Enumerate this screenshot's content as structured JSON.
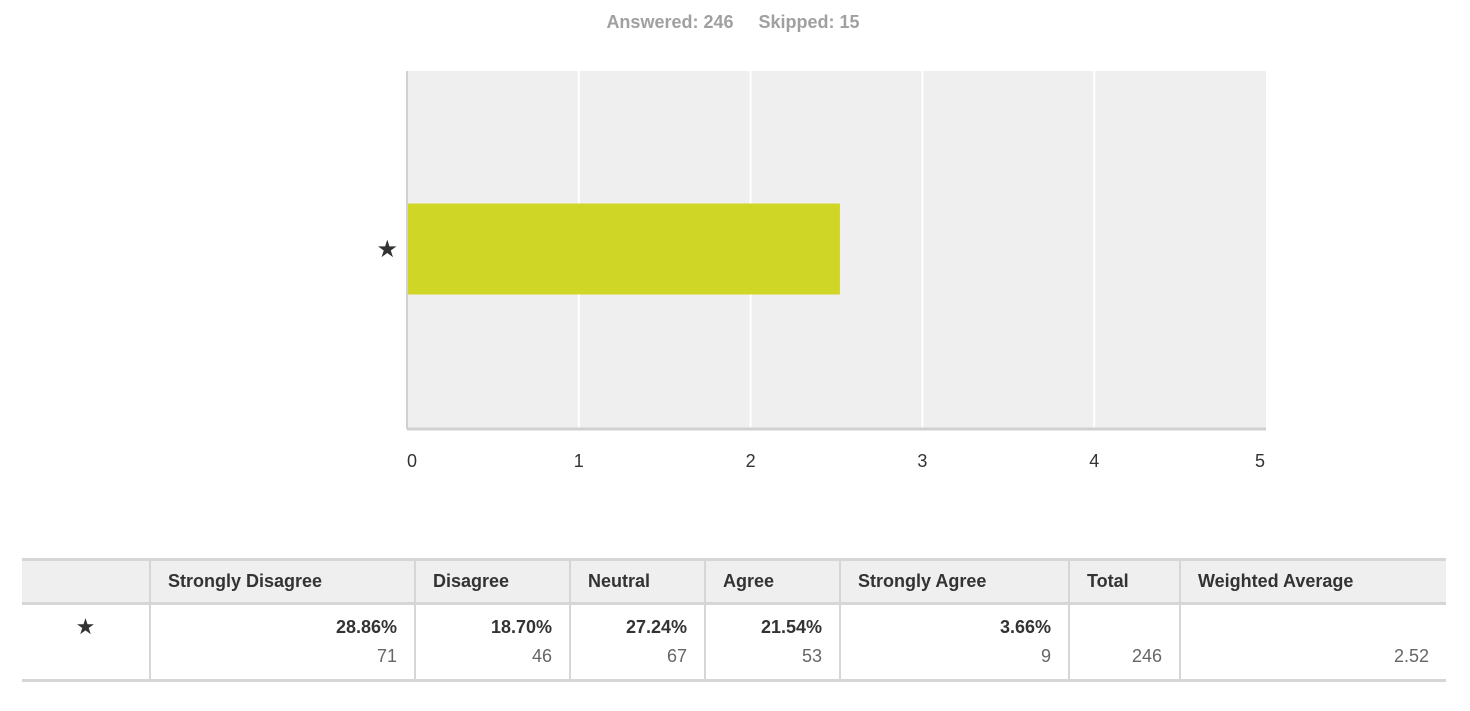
{
  "summary": {
    "answered": "Answered: 246",
    "skipped": "Skipped: 15"
  },
  "colors": {
    "bar": "#cfd626",
    "plot_bg": "#efefef",
    "grid": "#ffffff",
    "axis": "#d0d0d0"
  },
  "chart_data": {
    "type": "bar",
    "orientation": "horizontal",
    "categories": [
      "★"
    ],
    "values": [
      2.52
    ],
    "xlim": [
      0,
      5
    ],
    "xticks": [
      "0",
      "1",
      "2",
      "3",
      "4",
      "5"
    ],
    "grid": true,
    "title": "",
    "xlabel": "",
    "ylabel": ""
  },
  "table": {
    "headers": [
      "",
      "Strongly Disagree",
      "Disagree",
      "Neutral",
      "Agree",
      "Strongly Agree",
      "Total",
      "Weighted Average"
    ],
    "rows": [
      {
        "label": "★",
        "cells": [
          {
            "pct": "28.86%",
            "count": "71"
          },
          {
            "pct": "18.70%",
            "count": "46"
          },
          {
            "pct": "27.24%",
            "count": "67"
          },
          {
            "pct": "21.54%",
            "count": "53"
          },
          {
            "pct": "3.66%",
            "count": "9"
          }
        ],
        "total": "246",
        "weighted_average": "2.52"
      }
    ]
  }
}
